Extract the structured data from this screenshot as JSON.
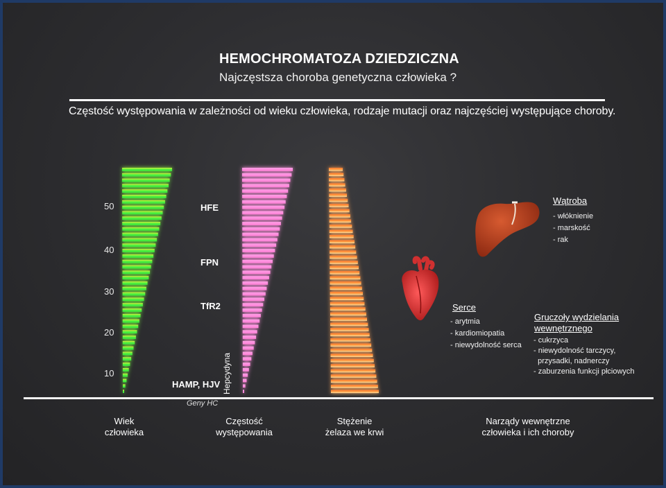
{
  "title": "HEMOCHROMATOZA DZIEDZICZNA",
  "subtitle": "Najczęstsza choroba genetyczna człowieka ?",
  "caption": "Częstość występowania w zależności od wieku człowieka, rodzaje mutacji oraz najczęściej występujące choroby.",
  "age_ticks": [
    "50",
    "40",
    "30",
    "20",
    "10"
  ],
  "genes": {
    "hfe": "HFE",
    "fpn": "FPN",
    "tfr2": "TfR2",
    "hamp_hjv": "HAMP, HJV",
    "hepcydyna": "Hepcydyna"
  },
  "genes_caption": "Geny HC",
  "axis_labels": {
    "age": [
      "Wiek",
      "człowieka"
    ],
    "frequency": [
      "Częstość",
      "występowania"
    ],
    "iron": [
      "Stężenie",
      "żelaza we krwi"
    ],
    "organs": [
      "Narządy wewnętrzne",
      "człowieka i ich choroby"
    ]
  },
  "organs": {
    "liver": {
      "title": "Wątroba",
      "items": [
        "- włóknienie",
        "- marskość",
        "- rak"
      ]
    },
    "heart": {
      "title": "Serce",
      "items": [
        "- arytmia",
        "- kardiomiopatia",
        "- niewydolność serca"
      ]
    },
    "glands": {
      "title_lines": [
        "Gruczoły wydzielania",
        "wewnętrznego"
      ],
      "items": [
        "- cukrzyca",
        "- niewydolność tarczycy,",
        "  przysadki, nadnerczy",
        "- zaburzenia funkcji płciowych"
      ]
    }
  },
  "colors": {
    "border": "#1f3a66",
    "green": "#3df03d",
    "yellow": "#e8f03a",
    "pink": "#ff8fe0",
    "orange": "#ff8a3a",
    "liver": "#b8401e",
    "heart": "#d42a2a"
  }
}
